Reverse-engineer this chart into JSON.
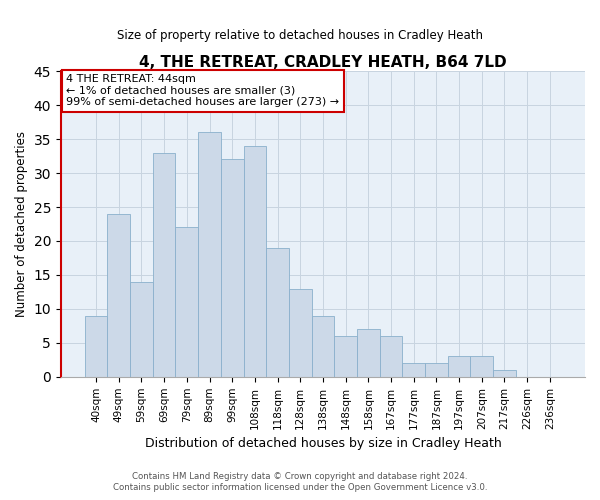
{
  "title": "4, THE RETREAT, CRADLEY HEATH, B64 7LD",
  "subtitle": "Size of property relative to detached houses in Cradley Heath",
  "xlabel": "Distribution of detached houses by size in Cradley Heath",
  "ylabel": "Number of detached properties",
  "bar_labels": [
    "40sqm",
    "49sqm",
    "59sqm",
    "69sqm",
    "79sqm",
    "89sqm",
    "99sqm",
    "108sqm",
    "118sqm",
    "128sqm",
    "138sqm",
    "148sqm",
    "158sqm",
    "167sqm",
    "177sqm",
    "187sqm",
    "197sqm",
    "207sqm",
    "217sqm",
    "226sqm",
    "236sqm"
  ],
  "bar_values": [
    9,
    24,
    14,
    33,
    22,
    36,
    32,
    34,
    19,
    13,
    9,
    6,
    7,
    6,
    2,
    2,
    3,
    3,
    1,
    0,
    0
  ],
  "bar_color": "#ccd9e8",
  "bar_edge_color": "#8ab0cc",
  "highlight_spine_color": "#cc0000",
  "ylim": [
    0,
    45
  ],
  "yticks": [
    0,
    5,
    10,
    15,
    20,
    25,
    30,
    35,
    40,
    45
  ],
  "annotation_text": "4 THE RETREAT: 44sqm\n← 1% of detached houses are smaller (3)\n99% of semi-detached houses are larger (273) →",
  "annotation_box_color": "#ffffff",
  "annotation_box_edge": "#cc0000",
  "footer_line1": "Contains HM Land Registry data © Crown copyright and database right 2024.",
  "footer_line2": "Contains public sector information licensed under the Open Government Licence v3.0.",
  "background_color": "#ffffff",
  "plot_bg_color": "#e8f0f8",
  "grid_color": "#c8d4e0"
}
